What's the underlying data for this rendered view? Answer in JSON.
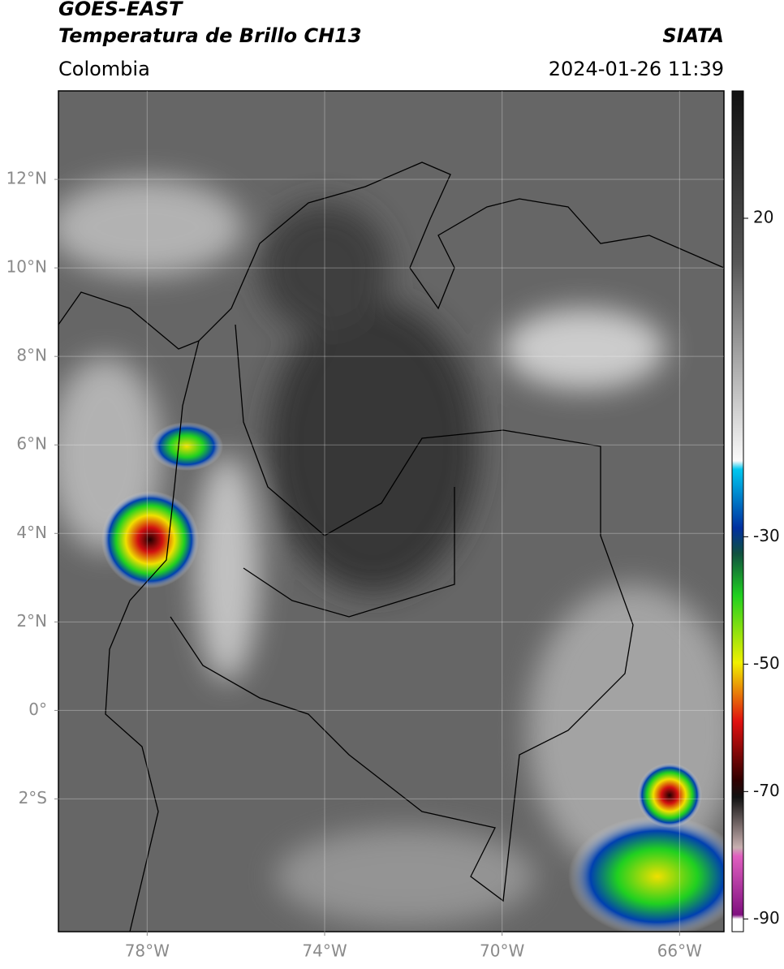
{
  "header": {
    "title": "GOES-EAST",
    "subtitle": "Temperatura de Brillo CH13",
    "source": "SIATA",
    "region": "Colombia",
    "timestamp": "2024-01-26 11:39"
  },
  "map": {
    "lonlim": [
      -80,
      -65
    ],
    "latlim": [
      -5,
      14
    ],
    "grid": true,
    "lonticks": [
      {
        "value": -78,
        "label": "78°W"
      },
      {
        "value": -74,
        "label": "74°W"
      },
      {
        "value": -70,
        "label": "70°W"
      },
      {
        "value": -66,
        "label": "66°W"
      }
    ],
    "latticks": [
      {
        "value": 12,
        "label": "12°N"
      },
      {
        "value": 10,
        "label": "10°N"
      },
      {
        "value": 8,
        "label": "8°N"
      },
      {
        "value": 6,
        "label": "6°N"
      },
      {
        "value": 4,
        "label": "4°N"
      },
      {
        "value": 2,
        "label": "2°N"
      },
      {
        "value": 0,
        "label": "0°"
      },
      {
        "value": -2,
        "label": "2°S"
      }
    ]
  },
  "colorbar": {
    "lim": [
      -92,
      40
    ],
    "ticks": [
      20,
      -30,
      -50,
      -70,
      -90
    ]
  }
}
